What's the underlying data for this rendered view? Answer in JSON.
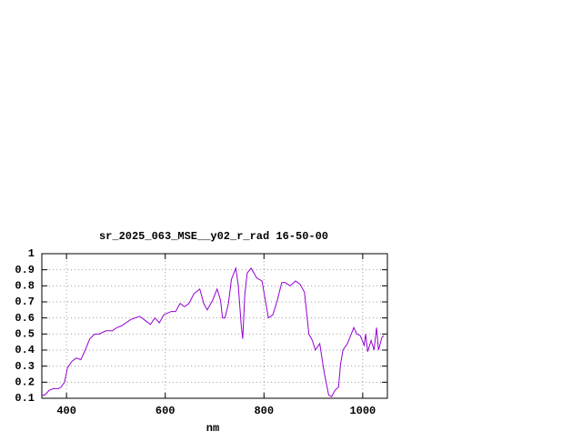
{
  "chart_data": {
    "type": "line",
    "title": "sr_2025_063_MSE__y02_r_rad 16-50-00",
    "x_label": "nm",
    "xlim": [
      350,
      1050
    ],
    "xticks": [
      400,
      600,
      800,
      1000
    ],
    "ylim": [
      0.1,
      1
    ],
    "yticks": [
      0.1,
      0.2,
      0.3,
      0.4,
      0.5,
      0.6,
      0.7,
      0.8,
      0.9,
      1
    ],
    "grid": true,
    "x": [
      350,
      356,
      365,
      374,
      384,
      389,
      396,
      402,
      411,
      420,
      429,
      438,
      447,
      457,
      466,
      480,
      493,
      502,
      511,
      530,
      548,
      557,
      570,
      579,
      588,
      597,
      612,
      621,
      630,
      639,
      648,
      658,
      670,
      678,
      685,
      696,
      705,
      712,
      716,
      721,
      728,
      734,
      743,
      748,
      754,
      757,
      761,
      766,
      774,
      785,
      796,
      809,
      818,
      827,
      836,
      843,
      853,
      864,
      873,
      882,
      891,
      898,
      904,
      913,
      922,
      931,
      937,
      944,
      951,
      955,
      960,
      969,
      982,
      988,
      995,
      1003,
      1006,
      1010,
      1017,
      1023,
      1028,
      1032,
      1039,
      1043
    ],
    "series": [
      {
        "color": "#9400d3",
        "values": [
          0.12,
          0.12,
          0.15,
          0.16,
          0.16,
          0.17,
          0.2,
          0.29,
          0.33,
          0.35,
          0.34,
          0.4,
          0.47,
          0.5,
          0.5,
          0.52,
          0.52,
          0.54,
          0.55,
          0.59,
          0.61,
          0.59,
          0.56,
          0.6,
          0.57,
          0.62,
          0.64,
          0.64,
          0.69,
          0.67,
          0.69,
          0.75,
          0.78,
          0.69,
          0.65,
          0.71,
          0.78,
          0.71,
          0.6,
          0.6,
          0.69,
          0.84,
          0.91,
          0.8,
          0.55,
          0.47,
          0.74,
          0.88,
          0.91,
          0.85,
          0.83,
          0.6,
          0.62,
          0.71,
          0.82,
          0.82,
          0.8,
          0.83,
          0.81,
          0.76,
          0.5,
          0.46,
          0.4,
          0.44,
          0.26,
          0.12,
          0.11,
          0.15,
          0.17,
          0.31,
          0.4,
          0.44,
          0.54,
          0.5,
          0.49,
          0.43,
          0.5,
          0.39,
          0.46,
          0.4,
          0.54,
          0.4,
          0.48,
          0.49
        ]
      }
    ]
  }
}
